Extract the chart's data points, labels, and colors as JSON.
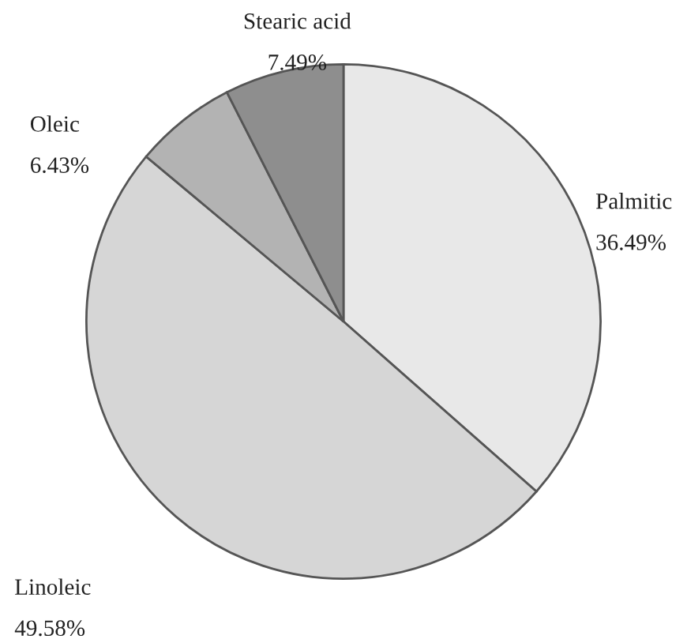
{
  "chart_data": {
    "type": "pie",
    "categories": [
      "Palmitic",
      "Linoleic",
      "Oleic",
      "Stearic acid"
    ],
    "values": [
      36.49,
      49.58,
      6.43,
      7.49
    ],
    "value_labels": [
      "36.49%",
      "49.58%",
      "6.43%",
      "7.49%"
    ],
    "colors": [
      "#e8e8e8",
      "#d6d6d6",
      "#b3b3b3",
      "#8e8e8e"
    ]
  }
}
